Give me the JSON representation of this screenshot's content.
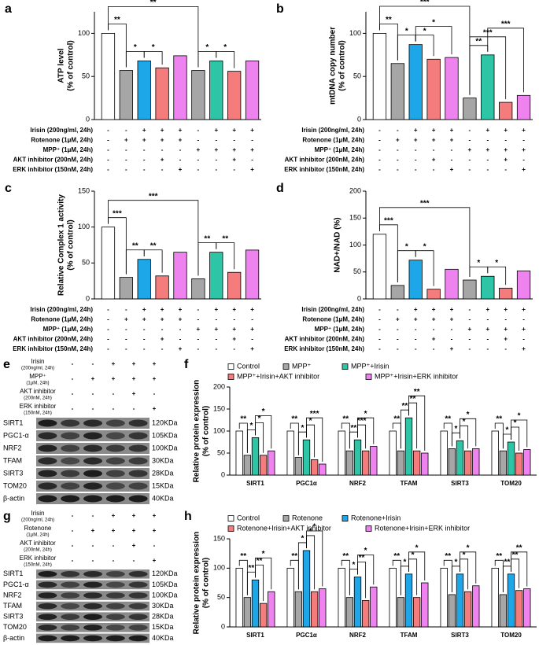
{
  "chart_data": [
    {
      "type": "bar",
      "panel": "a",
      "y_label": [
        "ATP level",
        "(% of control)"
      ],
      "ylim": [
        0,
        125
      ],
      "yticks": [
        0,
        50,
        100
      ],
      "values": [
        100,
        57,
        68,
        60,
        74,
        57,
        68,
        56,
        68
      ],
      "colors": [
        "#ffffff",
        "#a6a6a6",
        "#1ea7e8",
        "#f47c7c",
        "#ee82ee",
        "#a6a6a6",
        "#2ec4a6",
        "#f47c7c",
        "#ee82ee"
      ],
      "conditions": [
        {
          "label": "Irisin (200ng/ml, 24h)",
          "signs": [
            "-",
            "-",
            "+",
            "+",
            "+",
            "-",
            "+",
            "+",
            "+"
          ]
        },
        {
          "label": "Rotenone (1μM, 24h)",
          "signs": [
            "-",
            "+",
            "+",
            "+",
            "+",
            "-",
            "-",
            "-",
            "-"
          ]
        },
        {
          "label": "MPP⁺ (1μM, 24h)",
          "signs": [
            "-",
            "-",
            "-",
            "-",
            "-",
            "+",
            "+",
            "+",
            "+"
          ]
        },
        {
          "label": "AKT inhibitor (200nM, 24h)",
          "signs": [
            "-",
            "-",
            "-",
            "+",
            "-",
            "-",
            "-",
            "+",
            "-"
          ]
        },
        {
          "label": "ERK inhibitor (150nM, 24h)",
          "signs": [
            "-",
            "-",
            "-",
            "-",
            "+",
            "-",
            "-",
            "-",
            "+"
          ]
        }
      ],
      "annotations": [
        "**",
        "**",
        "*",
        "*",
        "*",
        "*"
      ]
    },
    {
      "type": "bar",
      "panel": "b",
      "y_label": [
        "mtDNA copy number",
        "(% of control)"
      ],
      "ylim": [
        0,
        125
      ],
      "yticks": [
        0,
        50,
        100
      ],
      "values": [
        100,
        65,
        87,
        70,
        72,
        25,
        75,
        20,
        28
      ],
      "colors": [
        "#ffffff",
        "#a6a6a6",
        "#1ea7e8",
        "#f47c7c",
        "#ee82ee",
        "#a6a6a6",
        "#2ec4a6",
        "#f47c7c",
        "#ee82ee"
      ],
      "conditions": [
        {
          "label": "Irisin (200ng/ml, 24h)",
          "signs": [
            "-",
            "-",
            "+",
            "+",
            "+",
            "-",
            "+",
            "+",
            "+"
          ]
        },
        {
          "label": "Rotenone (1μM, 24h)",
          "signs": [
            "-",
            "+",
            "+",
            "+",
            "+",
            "-",
            "-",
            "-",
            "-"
          ]
        },
        {
          "label": "MPP⁺ (1μM, 24h)",
          "signs": [
            "-",
            "-",
            "-",
            "-",
            "-",
            "+",
            "+",
            "+",
            "+"
          ]
        },
        {
          "label": "AKT inhibitor (200nM, 24h)",
          "signs": [
            "-",
            "-",
            "-",
            "+",
            "-",
            "-",
            "-",
            "+",
            "-"
          ]
        },
        {
          "label": "ERK inhibitor (150nM, 24h)",
          "signs": [
            "-",
            "-",
            "-",
            "-",
            "+",
            "-",
            "-",
            "-",
            "+"
          ]
        }
      ],
      "annotations": [
        "**",
        "***",
        "*",
        "*",
        "*",
        "**",
        "***",
        "***"
      ]
    },
    {
      "type": "bar",
      "panel": "c",
      "y_label": [
        "Relative Complex 1 activity",
        "(% of control)"
      ],
      "ylim": [
        0,
        150
      ],
      "yticks": [
        0,
        50,
        100,
        150
      ],
      "values": [
        100,
        30,
        55,
        32,
        65,
        28,
        65,
        37,
        68
      ],
      "colors": [
        "#ffffff",
        "#a6a6a6",
        "#1ea7e8",
        "#f47c7c",
        "#ee82ee",
        "#a6a6a6",
        "#2ec4a6",
        "#f47c7c",
        "#ee82ee"
      ],
      "conditions": [
        {
          "label": "Irisin (200ng/ml, 24h)",
          "signs": [
            "-",
            "-",
            "+",
            "+",
            "+",
            "-",
            "+",
            "+",
            "+"
          ]
        },
        {
          "label": "Rotenone (1μM, 24h)",
          "signs": [
            "-",
            "+",
            "+",
            "+",
            "+",
            "-",
            "-",
            "-",
            "-"
          ]
        },
        {
          "label": "MPP⁺ (1μM, 24h)",
          "signs": [
            "-",
            "-",
            "-",
            "-",
            "-",
            "+",
            "+",
            "+",
            "+"
          ]
        },
        {
          "label": "AKT inhibitor (200nM, 24h)",
          "signs": [
            "-",
            "-",
            "-",
            "+",
            "-",
            "-",
            "-",
            "+",
            "-"
          ]
        },
        {
          "label": "ERK inhibitor (150nM, 24h)",
          "signs": [
            "-",
            "-",
            "-",
            "-",
            "+",
            "-",
            "-",
            "-",
            "+"
          ]
        }
      ],
      "annotations": [
        "***",
        "***",
        "**",
        "**",
        "**",
        "**"
      ]
    },
    {
      "type": "bar",
      "panel": "d",
      "y_label": [
        "NAD+/NAD (%)"
      ],
      "ylim": [
        0,
        200
      ],
      "yticks": [
        0,
        50,
        100,
        150,
        200
      ],
      "values": [
        120,
        25,
        72,
        18,
        55,
        35,
        42,
        20,
        52
      ],
      "colors": [
        "#ffffff",
        "#a6a6a6",
        "#1ea7e8",
        "#f47c7c",
        "#ee82ee",
        "#a6a6a6",
        "#2ec4a6",
        "#f47c7c",
        "#ee82ee"
      ],
      "conditions": [
        {
          "label": "Irisin (200ng/ml, 24h)",
          "signs": [
            "-",
            "-",
            "+",
            "+",
            "+",
            "-",
            "+",
            "+",
            "+"
          ]
        },
        {
          "label": "Rotenone (1μM, 24h)",
          "signs": [
            "-",
            "+",
            "+",
            "+",
            "+",
            "-",
            "-",
            "-",
            "-"
          ]
        },
        {
          "label": "MPP⁺ (1μM, 24h)",
          "signs": [
            "-",
            "-",
            "-",
            "-",
            "-",
            "+",
            "+",
            "+",
            "+"
          ]
        },
        {
          "label": "AKT inhibitor (200nM, 24h)",
          "signs": [
            "-",
            "-",
            "-",
            "+",
            "-",
            "-",
            "-",
            "+",
            "-"
          ]
        },
        {
          "label": "ERK inhibitor (150nM, 24h)",
          "signs": [
            "-",
            "-",
            "-",
            "-",
            "+",
            "-",
            "-",
            "-",
            "+"
          ]
        }
      ],
      "annotations": [
        "***",
        "***",
        "*",
        "*",
        "*",
        "*"
      ]
    },
    {
      "type": "blot",
      "panel": "e",
      "conditions": [
        {
          "label": "Irisin",
          "sublabel": "(200ng/ml, 24h)",
          "signs": [
            "-",
            "-",
            "+",
            "+",
            "+"
          ]
        },
        {
          "label": "MPP⁺",
          "sublabel": "(1μM, 24h)",
          "signs": [
            "-",
            "+",
            "+",
            "+",
            "+"
          ]
        },
        {
          "label": "AKT inhibitor",
          "sublabel": "(200nM, 24h)",
          "signs": [
            "-",
            "-",
            "-",
            "+",
            "-"
          ]
        },
        {
          "label": "ERK inhibitor",
          "sublabel": "(150nM, 24h)",
          "signs": [
            "-",
            "-",
            "-",
            "-",
            "+"
          ]
        }
      ],
      "proteins": [
        {
          "name": "SIRT1",
          "size": "120KDa"
        },
        {
          "name": "PGC1-α",
          "size": "105KDa"
        },
        {
          "name": "NRF2",
          "size": "100KDa"
        },
        {
          "name": "TFAM",
          "size": "30KDa"
        },
        {
          "name": "SIRT3",
          "size": "28KDa"
        },
        {
          "name": "TOM20",
          "size": "15KDa"
        },
        {
          "name": "β-actin",
          "size": "40KDa"
        }
      ]
    },
    {
      "type": "grouped",
      "panel": "f",
      "y_label": [
        "Relative protein expression",
        "(% of control)"
      ],
      "ylim": [
        0,
        200
      ],
      "yticks": [
        0,
        50,
        100,
        150,
        200
      ],
      "categories": [
        "SIRT1",
        "PGC1α",
        "NRF2",
        "TFAM",
        "SIRT3",
        "TOM20"
      ],
      "series": [
        {
          "name": "Control",
          "color": "#ffffff",
          "values": [
            100,
            100,
            100,
            100,
            100,
            100
          ]
        },
        {
          "name": "MPP⁺",
          "color": "#a6a6a6",
          "values": [
            45,
            40,
            55,
            55,
            60,
            55
          ]
        },
        {
          "name": "MPP⁺+Irisin",
          "color": "#2ec4a6",
          "values": [
            85,
            80,
            80,
            130,
            78,
            75
          ]
        },
        {
          "name": "MPP⁺+Irisin+AKT inhibitor",
          "color": "#f47c7c",
          "values": [
            45,
            35,
            55,
            55,
            55,
            50
          ]
        },
        {
          "name": "MPP⁺+Irisin+ERK inhibitor",
          "color": "#ee82ee",
          "values": [
            55,
            25,
            65,
            50,
            60,
            58
          ]
        }
      ],
      "annotations": [
        "**",
        "*",
        "*",
        "*",
        "**",
        "*",
        "*",
        "***",
        "**",
        "**",
        "***",
        "*",
        "**",
        "**",
        "**",
        "**",
        "**",
        "*",
        "*",
        "*",
        "**",
        "*",
        "*",
        "*"
      ]
    },
    {
      "type": "blot",
      "panel": "g",
      "conditions": [
        {
          "label": "Irisin",
          "sublabel": "(200ng/ml, 24h)",
          "signs": [
            "-",
            "-",
            "+",
            "+",
            "+"
          ]
        },
        {
          "label": "Rotenone",
          "sublabel": "(1μM, 24h)",
          "signs": [
            "-",
            "+",
            "+",
            "+",
            "+"
          ]
        },
        {
          "label": "AKT inhibitor",
          "sublabel": "(200nM, 24h)",
          "signs": [
            "-",
            "-",
            "-",
            "+",
            "-"
          ]
        },
        {
          "label": "ERK inhibitor",
          "sublabel": "(150nM, 24h)",
          "signs": [
            "-",
            "-",
            "-",
            "-",
            "+"
          ]
        }
      ],
      "proteins": [
        {
          "name": "SIRT1",
          "size": "120KDa"
        },
        {
          "name": "PGC1-α",
          "size": "105KDa"
        },
        {
          "name": "NRF2",
          "size": "100KDa"
        },
        {
          "name": "TFAM",
          "size": "30KDa"
        },
        {
          "name": "SIRT3",
          "size": "28KDa"
        },
        {
          "name": "TOM20",
          "size": "15KDa"
        },
        {
          "name": "β-actin",
          "size": "40KDa"
        }
      ]
    },
    {
      "type": "grouped",
      "panel": "h",
      "y_label": [
        "Relative protein expression",
        "(% of control)"
      ],
      "ylim": [
        0,
        150
      ],
      "yticks": [
        0,
        50,
        100,
        150
      ],
      "categories": [
        "SIRT1",
        "PGC1α",
        "NRF2",
        "TFAM",
        "SIRT3",
        "TOM20"
      ],
      "series": [
        {
          "name": "Control",
          "color": "#ffffff",
          "values": [
            100,
            100,
            100,
            100,
            100,
            100
          ]
        },
        {
          "name": "Rotenone",
          "color": "#a6a6a6",
          "values": [
            50,
            60,
            50,
            50,
            55,
            55
          ]
        },
        {
          "name": "Rotenone+Irisin",
          "color": "#1ea7e8",
          "values": [
            80,
            130,
            85,
            90,
            90,
            90
          ]
        },
        {
          "name": "Rotenone+Irisin+AKT inhibitor",
          "color": "#f47c7c",
          "values": [
            40,
            60,
            45,
            50,
            60,
            62
          ]
        },
        {
          "name": "Rotenone+Irisin+ERK inhibitor",
          "color": "#ee82ee",
          "values": [
            60,
            65,
            68,
            75,
            70,
            65
          ]
        }
      ],
      "annotations": [
        "**",
        "**",
        "**",
        "*",
        "**",
        "*",
        "*",
        "*",
        "**",
        "*",
        "**",
        "*",
        "**",
        "*",
        "*",
        "*",
        "**",
        "*",
        "*",
        "*",
        "**",
        "**",
        "**",
        "**"
      ]
    }
  ]
}
